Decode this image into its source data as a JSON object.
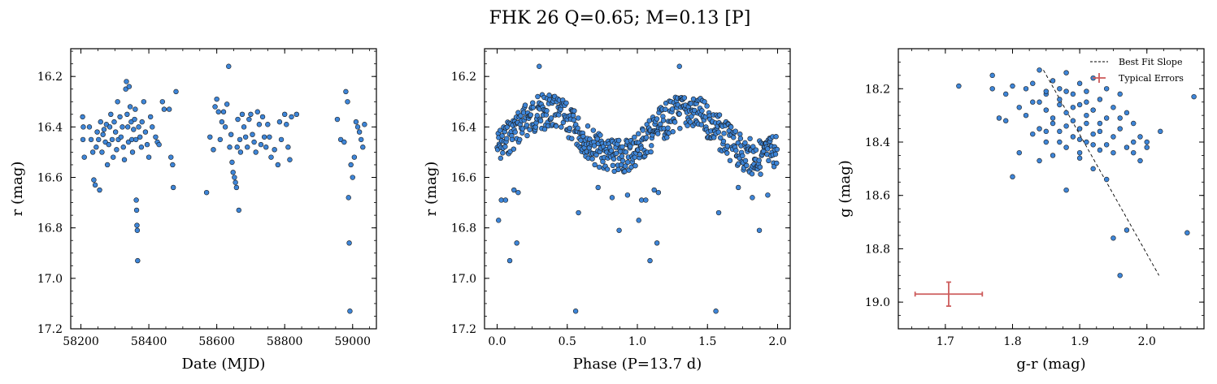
{
  "figure": {
    "title": "FHK 26  Q=0.65; M=0.13 [P]"
  },
  "colors": {
    "point_fill": "#3d85d8",
    "point_edge": "#1a1a1a",
    "error_bar": "#cd5c5c",
    "fit_line": "#000000"
  },
  "chart_data": [
    {
      "type": "scatter",
      "xlabel": "Date (MJD)",
      "ylabel": "r (mag)",
      "xlim": [
        58170,
        59070
      ],
      "ylim": [
        17.2,
        16.09
      ],
      "y_inverted": true,
      "xticks": [
        58200,
        58400,
        58600,
        58800,
        59000
      ],
      "yticks": [
        16.2,
        16.4,
        16.6,
        16.8,
        17.0,
        17.2
      ],
      "series": [
        {
          "points": [
            [
              58205,
              16.36
            ],
            [
              58207,
              16.4
            ],
            [
              58206,
              16.45
            ],
            [
              58210,
              16.52
            ],
            [
              58225,
              16.4
            ],
            [
              58230,
              16.45
            ],
            [
              58235,
              16.5
            ],
            [
              58238,
              16.61
            ],
            [
              58242,
              16.63
            ],
            [
              58245,
              16.48
            ],
            [
              58248,
              16.42
            ],
            [
              58252,
              16.45
            ],
            [
              58255,
              16.65
            ],
            [
              58258,
              16.38
            ],
            [
              58262,
              16.5
            ],
            [
              58265,
              16.43
            ],
            [
              58268,
              16.41
            ],
            [
              58272,
              16.46
            ],
            [
              58275,
              16.39
            ],
            [
              58278,
              16.55
            ],
            [
              58282,
              16.47
            ],
            [
              58285,
              16.4
            ],
            [
              58288,
              16.35
            ],
            [
              58292,
              16.45
            ],
            [
              58295,
              16.52
            ],
            [
              58298,
              16.38
            ],
            [
              58302,
              16.42
            ],
            [
              58305,
              16.49
            ],
            [
              58308,
              16.3
            ],
            [
              58310,
              16.45
            ],
            [
              58315,
              16.36
            ],
            [
              58318,
              16.44
            ],
            [
              58322,
              16.4
            ],
            [
              58325,
              16.48
            ],
            [
              58328,
              16.53
            ],
            [
              58332,
              16.25
            ],
            [
              58334,
              16.22
            ],
            [
              58336,
              16.35
            ],
            [
              58338,
              16.4
            ],
            [
              58340,
              16.46
            ],
            [
              58342,
              16.24
            ],
            [
              58345,
              16.32
            ],
            [
              58348,
              16.38
            ],
            [
              58350,
              16.45
            ],
            [
              58352,
              16.5
            ],
            [
              58355,
              16.41
            ],
            [
              58358,
              16.37
            ],
            [
              58360,
              16.33
            ],
            [
              58362,
              16.45
            ],
            [
              58363,
              16.69
            ],
            [
              58364,
              16.73
            ],
            [
              58365,
              16.79
            ],
            [
              58366,
              16.81
            ],
            [
              58367,
              16.93
            ],
            [
              58370,
              16.4
            ],
            [
              58374,
              16.44
            ],
            [
              58378,
              16.48
            ],
            [
              58380,
              16.38
            ],
            [
              58385,
              16.3
            ],
            [
              58390,
              16.42
            ],
            [
              58395,
              16.47
            ],
            [
              58400,
              16.52
            ],
            [
              58405,
              16.36
            ],
            [
              58410,
              16.4
            ],
            [
              58420,
              16.44
            ],
            [
              58425,
              16.46
            ],
            [
              58430,
              16.47
            ],
            [
              58440,
              16.3
            ],
            [
              58445,
              16.33
            ],
            [
              58460,
              16.33
            ],
            [
              58465,
              16.52
            ],
            [
              58470,
              16.55
            ],
            [
              58472,
              16.64
            ],
            [
              58480,
              16.26
            ],
            [
              58570,
              16.66
            ],
            [
              58580,
              16.44
            ],
            [
              58590,
              16.49
            ],
            [
              58595,
              16.32
            ],
            [
              58600,
              16.29
            ],
            [
              58605,
              16.34
            ],
            [
              58610,
              16.45
            ],
            [
              58615,
              16.38
            ],
            [
              58620,
              16.34
            ],
            [
              58625,
              16.4
            ],
            [
              58630,
              16.31
            ],
            [
              58635,
              16.16
            ],
            [
              58638,
              16.48
            ],
            [
              58642,
              16.43
            ],
            [
              58645,
              16.54
            ],
            [
              58648,
              16.58
            ],
            [
              58652,
              16.6
            ],
            [
              58655,
              16.62
            ],
            [
              58658,
              16.64
            ],
            [
              58660,
              16.48
            ],
            [
              58662,
              16.37
            ],
            [
              58665,
              16.73
            ],
            [
              58668,
              16.45
            ],
            [
              58670,
              16.5
            ],
            [
              58675,
              16.35
            ],
            [
              58680,
              16.4
            ],
            [
              58685,
              16.44
            ],
            [
              58690,
              16.48
            ],
            [
              58695,
              16.37
            ],
            [
              58700,
              16.35
            ],
            [
              58705,
              16.43
            ],
            [
              58710,
              16.46
            ],
            [
              58715,
              16.5
            ],
            [
              58720,
              16.34
            ],
            [
              58725,
              16.39
            ],
            [
              58730,
              16.47
            ],
            [
              58735,
              16.36
            ],
            [
              58740,
              16.44
            ],
            [
              58745,
              16.48
            ],
            [
              58750,
              16.39
            ],
            [
              58755,
              16.44
            ],
            [
              58760,
              16.52
            ],
            [
              58770,
              16.49
            ],
            [
              58780,
              16.55
            ],
            [
              58785,
              16.38
            ],
            [
              58790,
              16.45
            ],
            [
              58800,
              16.35
            ],
            [
              58805,
              16.39
            ],
            [
              58810,
              16.48
            ],
            [
              58815,
              16.53
            ],
            [
              58820,
              16.36
            ],
            [
              58835,
              16.35
            ],
            [
              58955,
              16.37
            ],
            [
              58965,
              16.45
            ],
            [
              58975,
              16.46
            ],
            [
              58980,
              16.26
            ],
            [
              58985,
              16.3
            ],
            [
              58988,
              16.68
            ],
            [
              58990,
              16.86
            ],
            [
              58992,
              17.13
            ],
            [
              58995,
              16.55
            ],
            [
              59000,
              16.6
            ],
            [
              59005,
              16.52
            ],
            [
              59010,
              16.38
            ],
            [
              59015,
              16.4
            ],
            [
              59020,
              16.42
            ],
            [
              59025,
              16.45
            ],
            [
              59030,
              16.48
            ],
            [
              59035,
              16.39
            ]
          ]
        }
      ]
    },
    {
      "type": "scatter",
      "xlabel": "Phase (P=13.7 d)",
      "ylabel": "r (mag)",
      "xlim": [
        -0.09,
        2.09
      ],
      "ylim": [
        17.2,
        16.09
      ],
      "y_inverted": true,
      "xticks": [
        0.0,
        0.5,
        1.0,
        1.5,
        2.0
      ],
      "xtick_labels": [
        "0.0",
        "0.5",
        "1.0",
        "1.5",
        "2.0"
      ],
      "yticks": [
        16.2,
        16.4,
        16.6,
        16.8,
        17.0,
        17.2
      ],
      "phase_curve": {
        "base": 16.43,
        "amplitude": 0.09,
        "peak_phase": 0.35,
        "period_cycles": 2.0
      },
      "outliers": [
        [
          0.01,
          16.77
        ],
        [
          0.03,
          16.69
        ],
        [
          0.06,
          16.69
        ],
        [
          0.09,
          16.93
        ],
        [
          0.12,
          16.65
        ],
        [
          0.14,
          16.86
        ],
        [
          0.15,
          16.66
        ],
        [
          0.56,
          17.13
        ],
        [
          0.58,
          16.74
        ],
        [
          0.72,
          16.64
        ],
        [
          0.82,
          16.68
        ],
        [
          0.87,
          16.81
        ],
        [
          0.93,
          16.67
        ],
        [
          1.01,
          16.77
        ],
        [
          1.03,
          16.69
        ],
        [
          1.06,
          16.69
        ],
        [
          1.09,
          16.93
        ],
        [
          1.12,
          16.65
        ],
        [
          1.14,
          16.86
        ],
        [
          1.15,
          16.66
        ],
        [
          1.56,
          17.13
        ],
        [
          1.58,
          16.74
        ],
        [
          1.72,
          16.64
        ],
        [
          1.82,
          16.68
        ],
        [
          1.87,
          16.81
        ],
        [
          1.93,
          16.67
        ],
        [
          0.3,
          16.16
        ],
        [
          1.3,
          16.16
        ]
      ]
    },
    {
      "type": "scatter",
      "xlabel": "g-r (mag)",
      "ylabel": "g (mag)",
      "xlim": [
        1.63,
        2.085
      ],
      "ylim": [
        19.1,
        18.05
      ],
      "y_inverted": true,
      "xticks": [
        1.7,
        1.8,
        1.9,
        2.0
      ],
      "yticks": [
        18.2,
        18.4,
        18.6,
        18.8,
        19.0
      ],
      "series": [
        {
          "points": [
            [
              1.72,
              18.19
            ],
            [
              1.77,
              18.15
            ],
            [
              1.77,
              18.2
            ],
            [
              1.78,
              18.31
            ],
            [
              1.79,
              18.32
            ],
            [
              1.8,
              18.19
            ],
            [
              1.8,
              18.53
            ],
            [
              1.81,
              18.44
            ],
            [
              1.82,
              18.2
            ],
            [
              1.82,
              18.3
            ],
            [
              1.83,
              18.18
            ],
            [
              1.83,
              18.37
            ],
            [
              1.84,
              18.13
            ],
            [
              1.84,
              18.25
            ],
            [
              1.84,
              18.47
            ],
            [
              1.85,
              18.22
            ],
            [
              1.85,
              18.28
            ],
            [
              1.85,
              18.4
            ],
            [
              1.86,
              18.17
            ],
            [
              1.86,
              18.33
            ],
            [
              1.86,
              18.45
            ],
            [
              1.87,
              18.2
            ],
            [
              1.87,
              18.26
            ],
            [
              1.87,
              18.36
            ],
            [
              1.88,
              18.14
            ],
            [
              1.88,
              18.29
            ],
            [
              1.88,
              18.42
            ],
            [
              1.88,
              18.58
            ],
            [
              1.89,
              18.22
            ],
            [
              1.89,
              18.32
            ],
            [
              1.89,
              18.38
            ],
            [
              1.9,
              18.18
            ],
            [
              1.9,
              18.26
            ],
            [
              1.9,
              18.35
            ],
            [
              1.9,
              18.46
            ],
            [
              1.91,
              18.21
            ],
            [
              1.91,
              18.3
            ],
            [
              1.91,
              18.4
            ],
            [
              1.92,
              18.16
            ],
            [
              1.92,
              18.28
            ],
            [
              1.92,
              18.37
            ],
            [
              1.92,
              18.5
            ],
            [
              1.93,
              18.24
            ],
            [
              1.93,
              18.33
            ],
            [
              1.93,
              18.43
            ],
            [
              1.94,
              18.2
            ],
            [
              1.94,
              18.31
            ],
            [
              1.94,
              18.54
            ],
            [
              1.95,
              18.27
            ],
            [
              1.95,
              18.38
            ],
            [
              1.95,
              18.76
            ],
            [
              1.96,
              18.22
            ],
            [
              1.96,
              18.35
            ],
            [
              1.96,
              18.9
            ],
            [
              1.97,
              18.29
            ],
            [
              1.97,
              18.42
            ],
            [
              1.97,
              18.73
            ],
            [
              1.98,
              18.33
            ],
            [
              1.98,
              18.44
            ],
            [
              1.99,
              18.38
            ],
            [
              1.99,
              18.47
            ],
            [
              2.0,
              18.4
            ],
            [
              2.0,
              18.42
            ],
            [
              2.02,
              18.36
            ],
            [
              2.06,
              18.74
            ],
            [
              2.07,
              18.23
            ],
            [
              1.85,
              18.21
            ],
            [
              1.87,
              18.24
            ],
            [
              1.89,
              18.27
            ],
            [
              1.91,
              18.25
            ],
            [
              1.86,
              18.31
            ],
            [
              1.88,
              18.34
            ],
            [
              1.9,
              18.39
            ],
            [
              1.92,
              18.41
            ],
            [
              1.84,
              18.35
            ],
            [
              1.83,
              18.25
            ],
            [
              1.81,
              18.27
            ],
            [
              1.79,
              18.22
            ],
            [
              1.93,
              18.36
            ],
            [
              1.95,
              18.44
            ],
            [
              1.94,
              18.41
            ],
            [
              1.96,
              18.31
            ],
            [
              1.98,
              18.4
            ],
            [
              1.9,
              18.44
            ],
            [
              1.87,
              18.4
            ],
            [
              1.85,
              18.36
            ],
            [
              1.88,
              18.21
            ],
            [
              1.91,
              18.33
            ]
          ]
        }
      ],
      "best_fit": {
        "x": [
          1.846,
          2.018
        ],
        "y": [
          18.13,
          18.9
        ]
      },
      "typical_error": {
        "x": 1.705,
        "y": 18.97,
        "xerr": 0.05,
        "yerr": 0.045
      },
      "legend": {
        "position": "upper right",
        "entries": [
          "Best Fit Slope",
          "Typical Errors"
        ]
      }
    }
  ]
}
